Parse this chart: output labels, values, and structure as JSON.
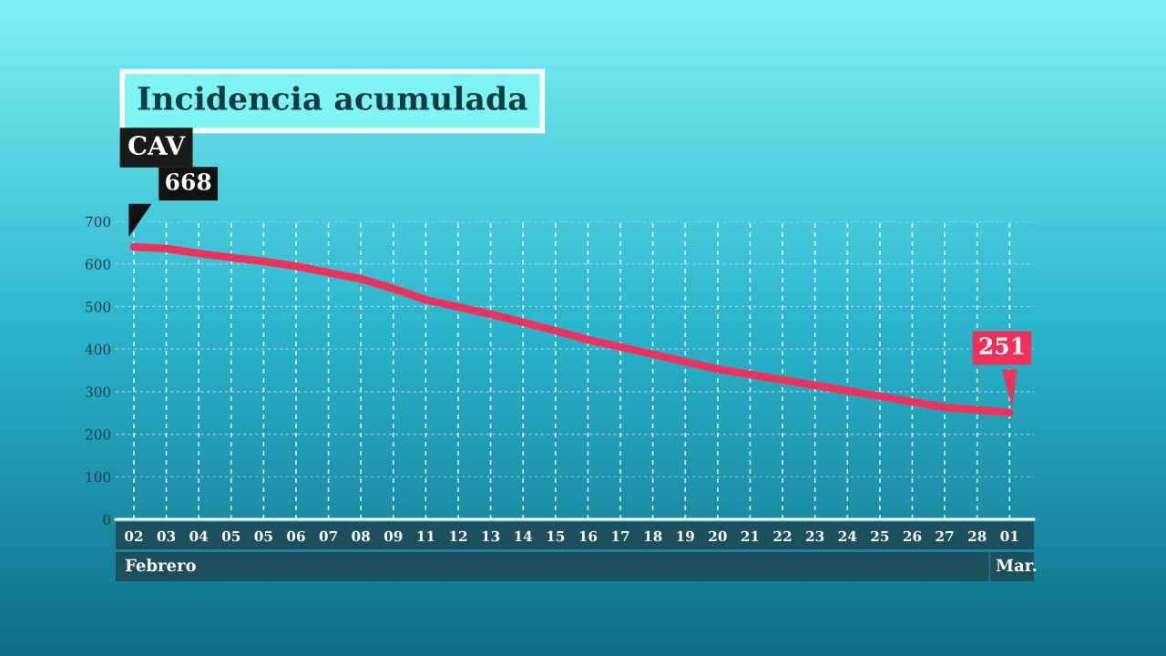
{
  "chart_data": {
    "type": "line",
    "title": "Incidencia acumulada",
    "subtitle": "CAV",
    "categories": [
      "02",
      "03",
      "04",
      "05",
      "05",
      "06",
      "07",
      "08",
      "09",
      "11",
      "12",
      "13",
      "14",
      "15",
      "16",
      "17",
      "18",
      "19",
      "20",
      "21",
      "22",
      "23",
      "24",
      "25",
      "26",
      "27",
      "28",
      "01"
    ],
    "series": [
      {
        "color": "#f0305a",
        "values": [
          640,
          636,
          625,
          615,
          606,
          595,
          580,
          565,
          542,
          516,
          499,
          482,
          463,
          443,
          422,
          405,
          388,
          370,
          353,
          340,
          328,
          315,
          302,
          289,
          276,
          263,
          257,
          251
        ]
      }
    ],
    "ylim": [
      0,
      700
    ],
    "yticks": [
      0,
      100,
      200,
      300,
      400,
      500,
      600,
      700
    ],
    "grid": true,
    "line_style": "solid",
    "marker": "none",
    "annotations": [
      {
        "text": "668",
        "x": "02",
        "y": 640
      },
      {
        "text": "251",
        "x": "01",
        "y": 251
      },
      "Febrero",
      "Mar."
    ]
  }
}
